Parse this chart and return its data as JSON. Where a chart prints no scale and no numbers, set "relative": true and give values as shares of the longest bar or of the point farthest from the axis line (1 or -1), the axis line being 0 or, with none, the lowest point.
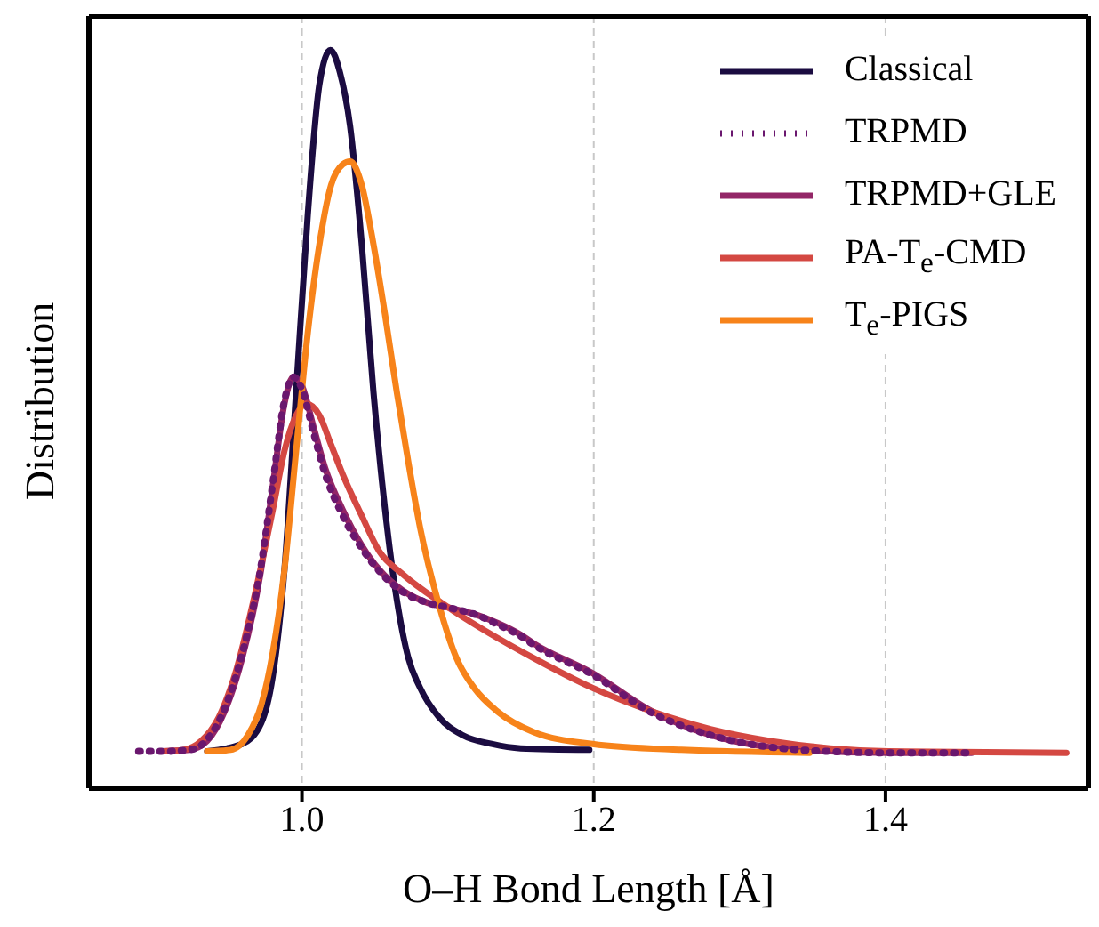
{
  "chart_data": {
    "type": "line",
    "xlabel": "O–H Bond Length [Å]",
    "ylabel": "Distribution",
    "relative": true,
    "xlim": [
      0.854,
      1.539
    ],
    "xticks": [
      {
        "value": 1,
        "label": "1.0"
      },
      {
        "value": 1.2,
        "label": "1.2"
      },
      {
        "value": 1.4,
        "label": "1.4"
      }
    ],
    "grid": "x",
    "legend": "top right",
    "tick_labels": "x",
    "series": [
      {
        "name": "Classical",
        "color": "#1b0c41",
        "line_style": "solid",
        "x": [
          0.935,
          0.959,
          0.972,
          0.98,
          0.988,
          0.996,
          1.004,
          1.012,
          1.0195,
          1.026,
          1.033,
          1.041,
          1.049,
          1.057,
          1.065,
          1.073,
          1.081,
          1.094,
          1.11,
          1.13,
          1.15,
          1.197
        ],
        "values": [
          0.05,
          0.06,
          0.088,
          0.152,
          0.296,
          0.537,
          0.777,
          0.954,
          1.0,
          0.97,
          0.897,
          0.737,
          0.537,
          0.377,
          0.256,
          0.176,
          0.136,
          0.096,
          0.072,
          0.06,
          0.054,
          0.052
        ]
      },
      {
        "name": "TRPMD",
        "color": "#6a176e",
        "line_style": "dotted",
        "x": [
          0.888,
          0.905,
          0.923,
          0.935,
          0.947,
          0.959,
          0.972,
          0.98,
          0.988,
          0.994,
          1.0,
          1.008,
          1.016,
          1.028,
          1.041,
          1.053,
          1.069,
          1.085,
          1.102,
          1.118,
          1.134,
          1.15,
          1.159,
          1.199,
          1.24,
          1.28,
          1.341,
          1.402,
          1.459
        ],
        "values": [
          0.05,
          0.05,
          0.052,
          0.066,
          0.108,
          0.182,
          0.302,
          0.413,
          0.525,
          0.557,
          0.541,
          0.481,
          0.425,
          0.369,
          0.325,
          0.294,
          0.266,
          0.252,
          0.244,
          0.236,
          0.222,
          0.206,
          0.194,
          0.154,
          0.102,
          0.072,
          0.052,
          0.048,
          0.048
        ]
      },
      {
        "name": "TRPMD+GLE",
        "color": "#932667",
        "line_style": "solid",
        "x": [
          0.905,
          0.923,
          0.935,
          0.947,
          0.959,
          0.972,
          0.98,
          0.988,
          0.994,
          1.0,
          1.008,
          1.016,
          1.028,
          1.041,
          1.053,
          1.069,
          1.085,
          1.102,
          1.118,
          1.134,
          1.15,
          1.159,
          1.199,
          1.24,
          1.28,
          1.341,
          1.402,
          1.459
        ],
        "values": [
          0.05,
          0.052,
          0.064,
          0.104,
          0.176,
          0.296,
          0.409,
          0.521,
          0.557,
          0.545,
          0.489,
          0.433,
          0.377,
          0.329,
          0.296,
          0.268,
          0.252,
          0.244,
          0.236,
          0.224,
          0.208,
          0.196,
          0.156,
          0.104,
          0.072,
          0.052,
          0.048,
          0.048
        ]
      },
      {
        "name": "PA-T$_{e}$-CMD",
        "color": "#d44842",
        "line_style": "solid",
        "x": [
          0.905,
          0.919,
          0.931,
          0.943,
          0.955,
          0.967,
          0.98,
          0.988,
          0.996,
          1.003,
          1.012,
          1.02,
          1.028,
          1.041,
          1.053,
          1.069,
          1.098,
          1.159,
          1.199,
          1.24,
          1.28,
          1.321,
          1.362,
          1.402,
          1.524
        ],
        "values": [
          0.05,
          0.052,
          0.064,
          0.096,
          0.16,
          0.256,
          0.377,
          0.457,
          0.505,
          0.521,
          0.505,
          0.465,
          0.425,
          0.369,
          0.321,
          0.29,
          0.248,
          0.176,
          0.136,
          0.104,
          0.08,
          0.064,
          0.054,
          0.05,
          0.048
        ]
      },
      {
        "name": "T$_{e}$-PIGS",
        "color": "#f7831a",
        "line_style": "solid",
        "x": [
          0.935,
          0.951,
          0.963,
          0.972,
          0.98,
          0.988,
          0.996,
          1.004,
          1.012,
          1.02,
          1.028,
          1.033,
          1.041,
          1.049,
          1.057,
          1.065,
          1.073,
          1.081,
          1.094,
          1.106,
          1.118,
          1.134,
          1.159,
          1.199,
          1.26,
          1.348
        ],
        "values": [
          0.05,
          0.052,
          0.072,
          0.112,
          0.184,
          0.296,
          0.457,
          0.617,
          0.737,
          0.817,
          0.845,
          0.849,
          0.817,
          0.737,
          0.641,
          0.537,
          0.441,
          0.353,
          0.248,
          0.176,
          0.136,
          0.104,
          0.076,
          0.06,
          0.052,
          0.048
        ]
      }
    ]
  }
}
